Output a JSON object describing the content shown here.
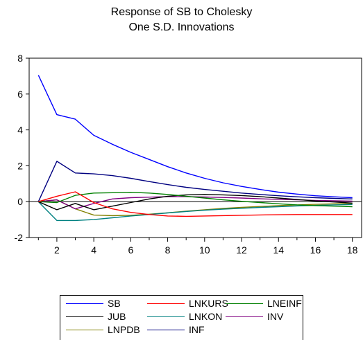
{
  "title_line1": "Response of SB to Cholesky",
  "title_line2": "One S.D. Innovations",
  "chart_data": {
    "type": "line",
    "title": "Response of SB to Cholesky One S.D. Innovations",
    "x": [
      1,
      2,
      3,
      4,
      5,
      6,
      7,
      8,
      9,
      10,
      11,
      12,
      13,
      14,
      15,
      16,
      17,
      18
    ],
    "xticks": [
      2,
      4,
      6,
      8,
      10,
      12,
      14,
      16,
      18
    ],
    "xlim": [
      0.5,
      18.5
    ],
    "ylim": [
      -2,
      8
    ],
    "yticks": [
      -2,
      0,
      2,
      4,
      6,
      8
    ],
    "zero_line": true,
    "legend_position": "bottom",
    "series": [
      {
        "name": "SB",
        "color": "#0000ff",
        "values": [
          7.05,
          4.85,
          4.6,
          3.7,
          3.2,
          2.75,
          2.35,
          1.95,
          1.6,
          1.3,
          1.05,
          0.85,
          0.68,
          0.53,
          0.42,
          0.33,
          0.27,
          0.22
        ]
      },
      {
        "name": "LNKURS",
        "color": "#ff0000",
        "values": [
          0.0,
          0.3,
          0.55,
          -0.05,
          -0.4,
          -0.6,
          -0.72,
          -0.8,
          -0.82,
          -0.8,
          -0.78,
          -0.76,
          -0.74,
          -0.73,
          -0.72,
          -0.72,
          -0.72,
          -0.72
        ]
      },
      {
        "name": "LNEINF",
        "color": "#008000",
        "values": [
          0.0,
          -0.05,
          0.35,
          0.48,
          0.5,
          0.52,
          0.48,
          0.4,
          0.3,
          0.2,
          0.1,
          0.02,
          -0.05,
          -0.12,
          -0.18,
          -0.22,
          -0.25,
          -0.28
        ]
      },
      {
        "name": "JUB",
        "color": "#000000",
        "values": [
          0.0,
          -0.45,
          -0.1,
          -0.45,
          -0.25,
          -0.05,
          0.15,
          0.3,
          0.38,
          0.4,
          0.38,
          0.34,
          0.28,
          0.2,
          0.12,
          0.04,
          -0.02,
          -0.08
        ]
      },
      {
        "name": "LNKON",
        "color": "#008080",
        "values": [
          0.0,
          -1.05,
          -1.05,
          -1.0,
          -0.9,
          -0.8,
          -0.72,
          -0.63,
          -0.55,
          -0.48,
          -0.42,
          -0.37,
          -0.32,
          -0.28,
          -0.24,
          -0.21,
          -0.18,
          -0.16
        ]
      },
      {
        "name": "INV",
        "color": "#800080",
        "values": [
          0.0,
          0.1,
          -0.4,
          -0.1,
          0.15,
          0.22,
          0.25,
          0.28,
          0.28,
          0.26,
          0.23,
          0.2,
          0.16,
          0.13,
          0.1,
          0.07,
          0.05,
          0.03
        ]
      },
      {
        "name": "LNPDB",
        "color": "#808000",
        "values": [
          0.0,
          0.1,
          -0.4,
          -0.75,
          -0.78,
          -0.76,
          -0.7,
          -0.62,
          -0.53,
          -0.45,
          -0.38,
          -0.32,
          -0.27,
          -0.22,
          -0.18,
          -0.15,
          -0.12,
          -0.1
        ]
      },
      {
        "name": "INF",
        "color": "#000080",
        "values": [
          0.0,
          2.25,
          1.6,
          1.55,
          1.45,
          1.3,
          1.12,
          0.95,
          0.8,
          0.68,
          0.58,
          0.48,
          0.4,
          0.33,
          0.27,
          0.22,
          0.18,
          0.15
        ]
      }
    ]
  }
}
